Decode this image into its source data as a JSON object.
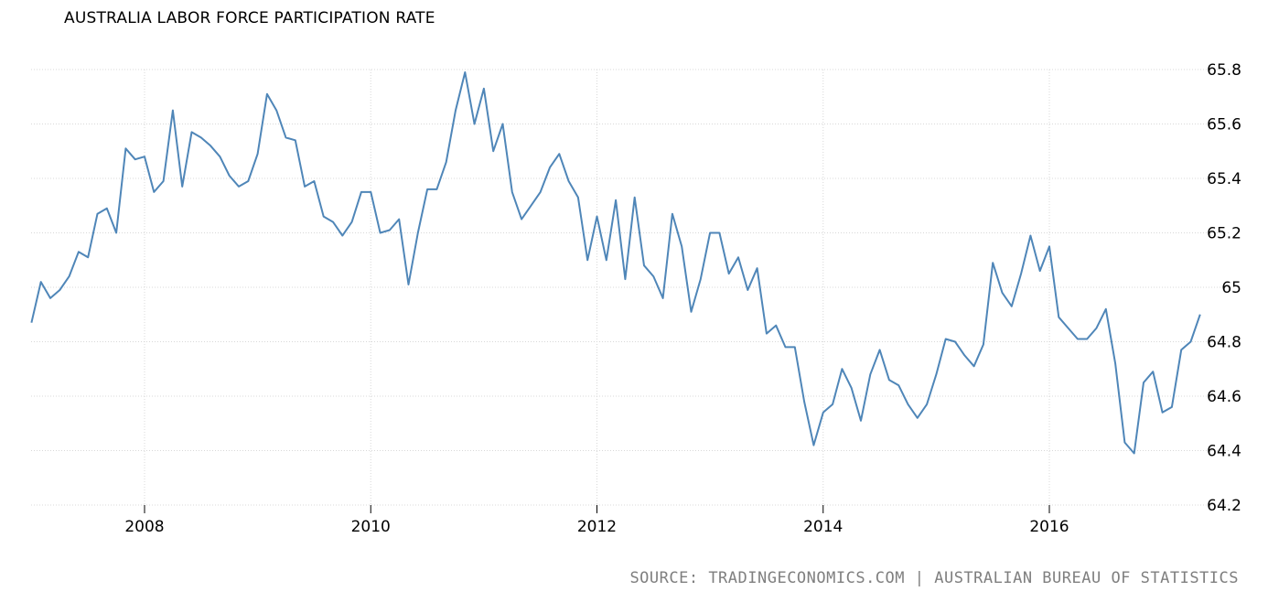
{
  "title": "AUSTRALIA LABOR FORCE PARTICIPATION RATE",
  "source": "SOURCE: TRADINGECONOMICS.COM | AUSTRALIAN BUREAU OF STATISTICS",
  "colors": {
    "line": "#4f86b8",
    "grid": "#d8d8d8",
    "source_text": "#7f7f7f"
  },
  "chart_data": {
    "type": "line",
    "xlabel": "",
    "ylabel": "",
    "title": "AUSTRALIA LABOR FORCE PARTICIPATION RATE",
    "x_tick_labels": [
      "2008",
      "2010",
      "2012",
      "2014",
      "2016"
    ],
    "y_tick_labels": [
      "64.2",
      "64.4",
      "64.6",
      "64.8",
      "65",
      "65.2",
      "65.4",
      "65.6",
      "65.8"
    ],
    "ylim": [
      64.2,
      65.8
    ],
    "xlim": [
      "2007-01",
      "2017-05"
    ],
    "grid": true,
    "y_axis_side": "right",
    "series": [
      {
        "x": [
          "2007-01",
          "2007-02",
          "2007-03",
          "2007-04",
          "2007-05",
          "2007-06",
          "2007-07",
          "2007-08",
          "2007-09",
          "2007-10",
          "2007-11",
          "2007-12",
          "2008-01",
          "2008-02",
          "2008-03",
          "2008-04",
          "2008-05",
          "2008-06",
          "2008-07",
          "2008-08",
          "2008-09",
          "2008-10",
          "2008-11",
          "2008-12",
          "2009-01",
          "2009-02",
          "2009-03",
          "2009-04",
          "2009-05",
          "2009-06",
          "2009-07",
          "2009-08",
          "2009-09",
          "2009-10",
          "2009-11",
          "2009-12",
          "2010-01",
          "2010-02",
          "2010-03",
          "2010-04",
          "2010-05",
          "2010-06",
          "2010-07",
          "2010-08",
          "2010-09",
          "2010-10",
          "2010-11",
          "2010-12",
          "2011-01",
          "2011-02",
          "2011-03",
          "2011-04",
          "2011-05",
          "2011-06",
          "2011-07",
          "2011-08",
          "2011-09",
          "2011-10",
          "2011-11",
          "2011-12",
          "2012-01",
          "2012-02",
          "2012-03",
          "2012-04",
          "2012-05",
          "2012-06",
          "2012-07",
          "2012-08",
          "2012-09",
          "2012-10",
          "2012-11",
          "2012-12",
          "2013-01",
          "2013-02",
          "2013-03",
          "2013-04",
          "2013-05",
          "2013-06",
          "2013-07",
          "2013-08",
          "2013-09",
          "2013-10",
          "2013-11",
          "2013-12",
          "2014-01",
          "2014-02",
          "2014-03",
          "2014-04",
          "2014-05",
          "2014-06",
          "2014-07",
          "2014-08",
          "2014-09",
          "2014-10",
          "2014-11",
          "2014-12",
          "2015-01",
          "2015-02",
          "2015-03",
          "2015-04",
          "2015-05",
          "2015-06",
          "2015-07",
          "2015-08",
          "2015-09",
          "2015-10",
          "2015-11",
          "2015-12",
          "2016-01",
          "2016-02",
          "2016-03",
          "2016-04",
          "2016-05",
          "2016-06",
          "2016-07",
          "2016-08",
          "2016-09",
          "2016-10",
          "2016-11",
          "2016-12",
          "2017-01",
          "2017-02",
          "2017-03",
          "2017-04",
          "2017-05"
        ],
        "values": [
          64.87,
          65.02,
          64.96,
          64.99,
          65.04,
          65.13,
          65.11,
          65.27,
          65.29,
          65.2,
          65.51,
          65.47,
          65.48,
          65.35,
          65.39,
          65.65,
          65.37,
          65.57,
          65.55,
          65.52,
          65.48,
          65.41,
          65.37,
          65.39,
          65.49,
          65.71,
          65.65,
          65.55,
          65.54,
          65.37,
          65.39,
          65.26,
          65.24,
          65.19,
          65.24,
          65.35,
          65.35,
          65.2,
          65.21,
          65.25,
          65.01,
          65.2,
          65.36,
          65.36,
          65.46,
          65.65,
          65.79,
          65.6,
          65.73,
          65.5,
          65.6,
          65.35,
          65.25,
          65.3,
          65.35,
          65.44,
          65.49,
          65.39,
          65.33,
          65.1,
          65.26,
          65.1,
          65.32,
          65.03,
          65.33,
          65.08,
          65.04,
          64.96,
          65.27,
          65.15,
          64.91,
          65.03,
          65.2,
          65.2,
          65.05,
          65.11,
          64.99,
          65.07,
          64.83,
          64.86,
          64.78,
          64.78,
          64.58,
          64.42,
          64.54,
          64.57,
          64.7,
          64.63,
          64.51,
          64.68,
          64.77,
          64.66,
          64.64,
          64.57,
          64.52,
          64.57,
          64.68,
          64.81,
          64.8,
          64.75,
          64.71,
          64.79,
          65.09,
          64.98,
          64.93,
          65.05,
          65.19,
          65.06,
          65.15,
          64.89,
          64.85,
          64.81,
          64.81,
          64.85,
          64.92,
          64.72,
          64.43,
          64.39,
          64.65,
          64.69,
          64.54,
          64.56,
          64.77,
          64.8,
          64.9
        ]
      }
    ]
  }
}
